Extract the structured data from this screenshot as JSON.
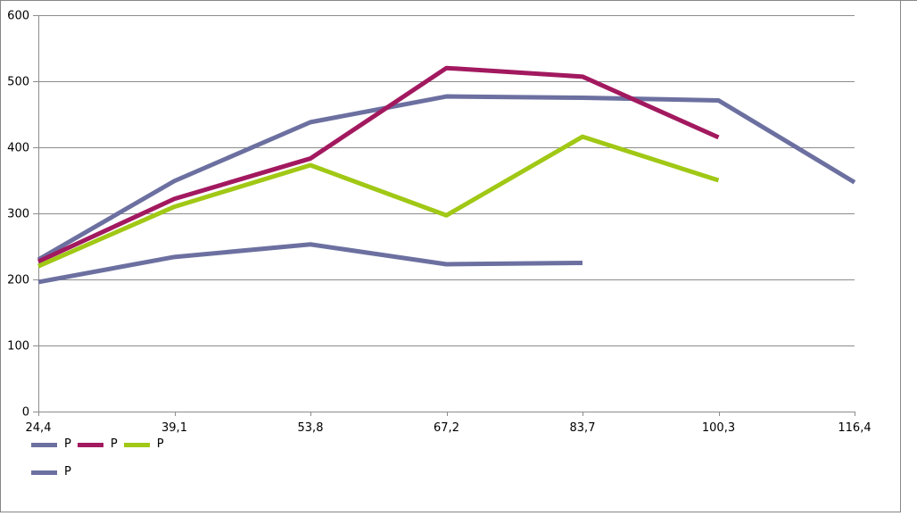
{
  "chart_data": {
    "type": "line",
    "title": "",
    "xlabel": "",
    "ylabel": "",
    "categories": [
      "24,4",
      "39,1",
      "53,8",
      "67,2",
      "83,7",
      "100,3",
      "116,4"
    ],
    "series": [
      {
        "name": "P",
        "color": "#6c70a0",
        "legend_row": 1,
        "values": [
          230,
          349,
          438,
          477,
          475,
          471,
          347
        ]
      },
      {
        "name": "P",
        "color": "#a2195f",
        "legend_row": 1,
        "values": [
          227,
          322,
          383,
          520,
          507,
          415,
          null
        ]
      },
      {
        "name": "P",
        "color": "#a0c815",
        "legend_row": 1,
        "values": [
          220,
          310,
          373,
          297,
          416,
          350,
          null
        ]
      },
      {
        "name": "P",
        "color": "#6c70a0",
        "legend_row": 2,
        "values": [
          196,
          234,
          253,
          223,
          225,
          null,
          null
        ]
      }
    ],
    "y_axis": {
      "min": 0,
      "max": 600,
      "step": 100,
      "ticks": [
        0,
        100,
        200,
        300,
        400,
        500,
        600
      ]
    },
    "grid": true,
    "legend_position": "bottom-left",
    "line_width": 5
  },
  "colors": {
    "gridline": "#8c8c8c",
    "axis": "#8c8c8c",
    "frame_border": "#878787",
    "text": "#000000",
    "background": "#ffffff"
  }
}
